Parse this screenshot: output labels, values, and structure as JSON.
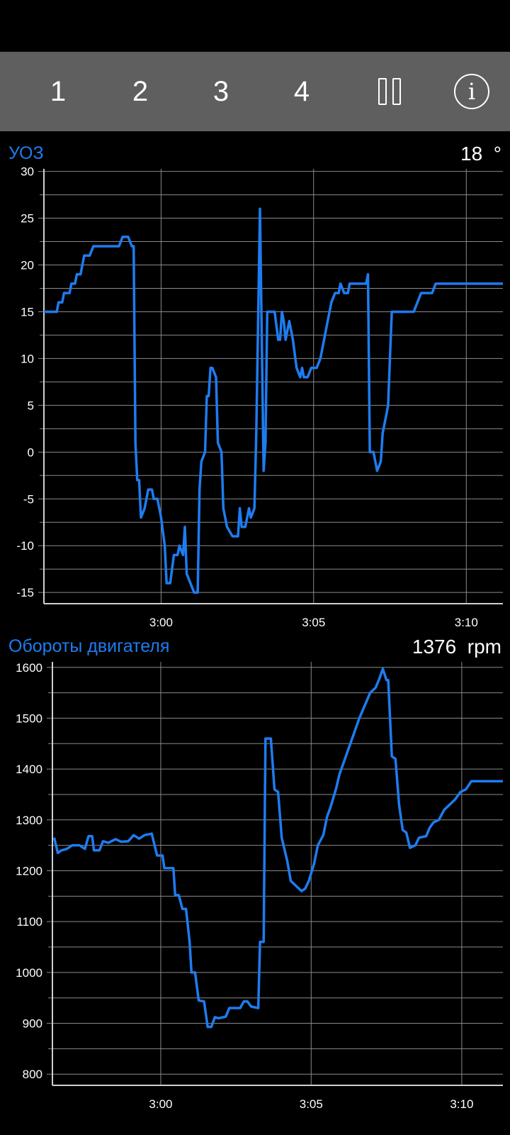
{
  "toolbar": {
    "buttons": [
      "1",
      "2",
      "3",
      "4"
    ],
    "pause_icon": "pause-icon",
    "info_icon": "info-icon",
    "info_glyph": "i"
  },
  "colors": {
    "background": "#000000",
    "toolbar": "#5f5f5f",
    "accent": "#1e7cf0",
    "grid": "#8a8a8a"
  },
  "charts": [
    {
      "title": "УОЗ",
      "current_value": "18",
      "unit": "°"
    },
    {
      "title": "Обороты двигателя",
      "current_value": "1376",
      "unit": "rpm"
    }
  ],
  "chart_data": [
    {
      "type": "line",
      "title": "УОЗ",
      "x_unit": "minutes",
      "x_ticks": [
        3.0,
        3.0833,
        3.1667
      ],
      "x_tick_labels": [
        "3:00",
        "3:05",
        "3:10"
      ],
      "xlim": [
        2.936,
        3.1867
      ],
      "ylim": [
        -16.2,
        30.5
      ],
      "y_ticks": [
        -15,
        -10,
        -5,
        0,
        5,
        10,
        15,
        20,
        25,
        30
      ],
      "y_minor_step": 2.5,
      "grid": true,
      "series": [
        {
          "values": [
            [
              2.936,
              15
            ],
            [
              2.943,
              15
            ],
            [
              2.944,
              16
            ],
            [
              2.946,
              16
            ],
            [
              2.947,
              17
            ],
            [
              2.95,
              17
            ],
            [
              2.951,
              18
            ],
            [
              2.953,
              18
            ],
            [
              2.954,
              19
            ],
            [
              2.956,
              19
            ],
            [
              2.958,
              21
            ],
            [
              2.961,
              21
            ],
            [
              2.963,
              22
            ],
            [
              2.977,
              22
            ],
            [
              2.979,
              23
            ],
            [
              2.982,
              23
            ],
            [
              2.984,
              22
            ],
            [
              2.985,
              22
            ],
            [
              2.986,
              1
            ],
            [
              2.987,
              -3
            ],
            [
              2.988,
              -3
            ],
            [
              2.989,
              -7
            ],
            [
              2.991,
              -6
            ],
            [
              2.993,
              -4
            ],
            [
              2.995,
              -4
            ],
            [
              2.996,
              -5
            ],
            [
              2.998,
              -5
            ],
            [
              3.0,
              -7
            ],
            [
              3.002,
              -10
            ],
            [
              3.003,
              -14
            ],
            [
              3.005,
              -14
            ],
            [
              3.007,
              -11
            ],
            [
              3.009,
              -11
            ],
            [
              3.01,
              -10
            ],
            [
              3.012,
              -11
            ],
            [
              3.013,
              -8
            ],
            [
              3.014,
              -13
            ],
            [
              3.016,
              -14
            ],
            [
              3.018,
              -15
            ],
            [
              3.02,
              -15
            ],
            [
              3.021,
              -4
            ],
            [
              3.022,
              -1
            ],
            [
              3.024,
              0
            ],
            [
              3.025,
              6
            ],
            [
              3.026,
              6
            ],
            [
              3.027,
              9
            ],
            [
              3.028,
              9
            ],
            [
              3.03,
              8
            ],
            [
              3.031,
              1
            ],
            [
              3.033,
              0
            ],
            [
              3.034,
              -6
            ],
            [
              3.036,
              -8
            ],
            [
              3.039,
              -9
            ],
            [
              3.042,
              -9
            ],
            [
              3.043,
              -6
            ],
            [
              3.044,
              -8
            ],
            [
              3.046,
              -8
            ],
            [
              3.048,
              -6
            ],
            [
              3.049,
              -7
            ],
            [
              3.051,
              -6
            ],
            [
              3.052,
              2
            ],
            [
              3.054,
              26
            ],
            [
              3.056,
              -2
            ],
            [
              3.057,
              1
            ],
            [
              3.058,
              15
            ],
            [
              3.062,
              15
            ],
            [
              3.064,
              12
            ],
            [
              3.065,
              12
            ],
            [
              3.066,
              15
            ],
            [
              3.067,
              14
            ],
            [
              3.068,
              12
            ],
            [
              3.07,
              14
            ],
            [
              3.072,
              12
            ],
            [
              3.074,
              9
            ],
            [
              3.076,
              8
            ],
            [
              3.077,
              9
            ],
            [
              3.078,
              8
            ],
            [
              3.08,
              8
            ],
            [
              3.082,
              9
            ],
            [
              3.085,
              9
            ],
            [
              3.087,
              10
            ],
            [
              3.089,
              12
            ],
            [
              3.091,
              14
            ],
            [
              3.093,
              16
            ],
            [
              3.095,
              17
            ],
            [
              3.097,
              17
            ],
            [
              3.098,
              18
            ],
            [
              3.1,
              17
            ],
            [
              3.102,
              17
            ],
            [
              3.103,
              18
            ],
            [
              3.112,
              18
            ],
            [
              3.113,
              19
            ],
            [
              3.114,
              0
            ],
            [
              3.116,
              0
            ],
            [
              3.118,
              -2
            ],
            [
              3.12,
              -1
            ],
            [
              3.121,
              2
            ],
            [
              3.123,
              4
            ],
            [
              3.124,
              5
            ],
            [
              3.126,
              15
            ],
            [
              3.138,
              15
            ],
            [
              3.14,
              16
            ],
            [
              3.142,
              17
            ],
            [
              3.148,
              17
            ],
            [
              3.15,
              18
            ],
            [
              3.1867,
              18
            ]
          ]
        }
      ]
    },
    {
      "type": "line",
      "title": "Обороты двигателя",
      "x_unit": "minutes",
      "x_ticks": [
        3.0,
        3.0833,
        3.1667
      ],
      "x_tick_labels": [
        "3:00",
        "3:05",
        "3:10"
      ],
      "xlim": [
        2.94,
        3.1895
      ],
      "ylim": [
        778,
        1615
      ],
      "y_ticks": [
        800,
        900,
        1000,
        1100,
        1200,
        1300,
        1400,
        1500,
        1600
      ],
      "y_minor_step": 50,
      "grid": true,
      "series": [
        {
          "values": [
            [
              2.941,
              1265
            ],
            [
              2.943,
              1235
            ],
            [
              2.945,
              1240
            ],
            [
              2.948,
              1243
            ],
            [
              2.951,
              1250
            ],
            [
              2.955,
              1250
            ],
            [
              2.958,
              1243
            ],
            [
              2.96,
              1268
            ],
            [
              2.962,
              1268
            ],
            [
              2.963,
              1240
            ],
            [
              2.966,
              1240
            ],
            [
              2.968,
              1258
            ],
            [
              2.971,
              1255
            ],
            [
              2.975,
              1262
            ],
            [
              2.978,
              1257
            ],
            [
              2.982,
              1258
            ],
            [
              2.985,
              1270
            ],
            [
              2.988,
              1263
            ],
            [
              2.991,
              1270
            ],
            [
              2.995,
              1273
            ],
            [
              2.998,
              1230
            ],
            [
              3.001,
              1230
            ],
            [
              3.002,
              1205
            ],
            [
              3.007,
              1205
            ],
            [
              3.008,
              1152
            ],
            [
              3.01,
              1152
            ],
            [
              3.012,
              1125
            ],
            [
              3.014,
              1125
            ],
            [
              3.016,
              1060
            ],
            [
              3.017,
              1000
            ],
            [
              3.019,
              1000
            ],
            [
              3.021,
              945
            ],
            [
              3.024,
              943
            ],
            [
              3.026,
              893
            ],
            [
              3.028,
              893
            ],
            [
              3.03,
              912
            ],
            [
              3.032,
              910
            ],
            [
              3.036,
              913
            ],
            [
              3.038,
              930
            ],
            [
              3.044,
              930
            ],
            [
              3.046,
              943
            ],
            [
              3.048,
              943
            ],
            [
              3.05,
              933
            ],
            [
              3.054,
              930
            ],
            [
              3.055,
              1060
            ],
            [
              3.057,
              1060
            ],
            [
              3.058,
              1460
            ],
            [
              3.061,
              1460
            ],
            [
              3.063,
              1360
            ],
            [
              3.065,
              1355
            ],
            [
              3.067,
              1265
            ],
            [
              3.07,
              1220
            ],
            [
              3.072,
              1180
            ],
            [
              3.075,
              1170
            ],
            [
              3.078,
              1160
            ],
            [
              3.08,
              1165
            ],
            [
              3.082,
              1180
            ],
            [
              3.085,
              1215
            ],
            [
              3.087,
              1250
            ],
            [
              3.09,
              1270
            ],
            [
              3.092,
              1305
            ],
            [
              3.094,
              1325
            ],
            [
              3.097,
              1360
            ],
            [
              3.099,
              1390
            ],
            [
              3.102,
              1420
            ],
            [
              3.105,
              1450
            ],
            [
              3.107,
              1470
            ],
            [
              3.11,
              1500
            ],
            [
              3.113,
              1525
            ],
            [
              3.116,
              1550
            ],
            [
              3.119,
              1560
            ],
            [
              3.121,
              1577
            ],
            [
              3.123,
              1597
            ],
            [
              3.125,
              1575
            ],
            [
              3.126,
              1575
            ],
            [
              3.128,
              1425
            ],
            [
              3.13,
              1420
            ],
            [
              3.132,
              1330
            ],
            [
              3.134,
              1280
            ],
            [
              3.136,
              1275
            ],
            [
              3.138,
              1245
            ],
            [
              3.141,
              1250
            ],
            [
              3.143,
              1265
            ],
            [
              3.147,
              1268
            ],
            [
              3.149,
              1285
            ],
            [
              3.151,
              1295
            ],
            [
              3.154,
              1300
            ],
            [
              3.157,
              1320
            ],
            [
              3.16,
              1330
            ],
            [
              3.163,
              1340
            ],
            [
              3.166,
              1355
            ],
            [
              3.169,
              1360
            ],
            [
              3.172,
              1376
            ],
            [
              3.1895,
              1376
            ]
          ]
        }
      ]
    }
  ]
}
